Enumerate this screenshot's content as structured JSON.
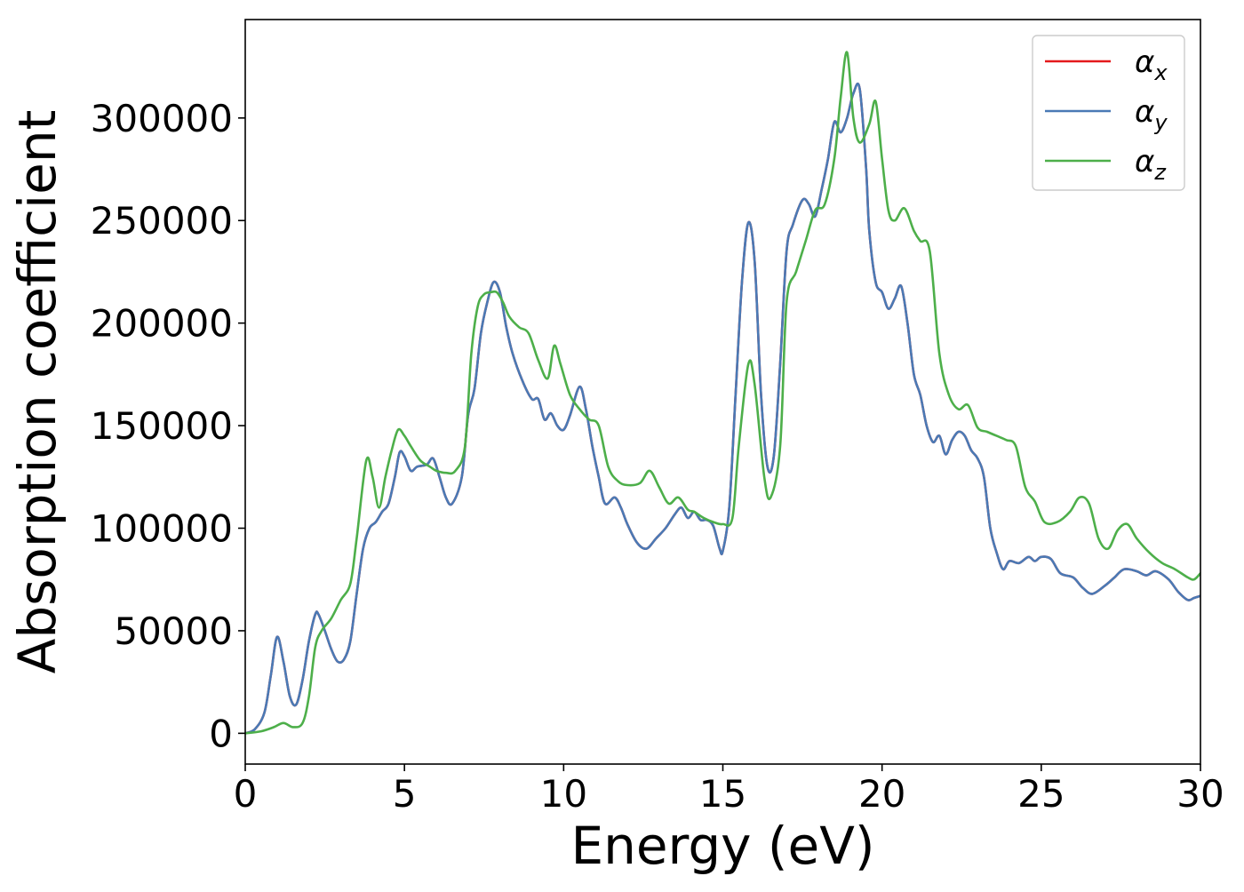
{
  "chart_data": {
    "type": "line",
    "title": "",
    "xlabel": "Energy (eV)",
    "ylabel": "Absorption coefficient",
    "xlim": [
      0,
      30
    ],
    "ylim": [
      -15000,
      348000
    ],
    "x_ticks": [
      0,
      5,
      10,
      15,
      20,
      25,
      30
    ],
    "x_tick_labels": [
      "0",
      "5",
      "10",
      "15",
      "20",
      "25",
      "30"
    ],
    "y_ticks": [
      0,
      50000,
      100000,
      150000,
      200000,
      250000,
      300000
    ],
    "y_tick_labels": [
      "0",
      "50000",
      "100000",
      "150000",
      "200000",
      "250000",
      "300000"
    ],
    "grid": false,
    "legend_position": "top-right",
    "series": [
      {
        "name": "αx",
        "legend_base": "α",
        "legend_sub": "x",
        "color": "#e41a1c",
        "x": [
          0,
          0.3,
          0.6,
          0.8,
          1.0,
          1.2,
          1.4,
          1.6,
          1.8,
          2.0,
          2.2,
          2.3,
          2.5,
          2.7,
          2.9,
          3.1,
          3.3,
          3.5,
          3.7,
          3.9,
          4.1,
          4.3,
          4.5,
          4.7,
          4.85,
          5.0,
          5.2,
          5.4,
          5.7,
          5.9,
          6.1,
          6.3,
          6.5,
          6.8,
          7.0,
          7.2,
          7.4,
          7.6,
          7.8,
          8.0,
          8.2,
          8.4,
          8.7,
          9.0,
          9.2,
          9.4,
          9.6,
          9.8,
          10.0,
          10.2,
          10.5,
          10.7,
          10.9,
          11.1,
          11.3,
          11.6,
          11.8,
          12.0,
          12.3,
          12.6,
          12.9,
          13.2,
          13.5,
          13.7,
          13.9,
          14.1,
          14.3,
          14.5,
          14.7,
          14.9,
          15.0,
          15.2,
          15.4,
          15.6,
          15.8,
          16.0,
          16.2,
          16.4,
          16.6,
          16.8,
          17.0,
          17.2,
          17.5,
          17.7,
          17.9,
          18.1,
          18.3,
          18.5,
          18.7,
          18.9,
          19.1,
          19.3,
          19.5,
          19.6,
          19.8,
          20.0,
          20.2,
          20.4,
          20.6,
          20.8,
          21.0,
          21.2,
          21.4,
          21.6,
          21.8,
          22.0,
          22.2,
          22.4,
          22.6,
          22.8,
          23.0,
          23.2,
          23.4,
          23.6,
          23.8,
          24.0,
          24.3,
          24.6,
          24.8,
          25.0,
          25.3,
          25.6,
          26.0,
          26.3,
          26.6,
          27.0,
          27.3,
          27.6,
          28.0,
          28.3,
          28.6,
          29.0,
          29.3,
          29.6,
          29.8,
          30.0
        ],
        "y": [
          0,
          2000,
          10000,
          28000,
          47000,
          35000,
          18000,
          14000,
          26000,
          45000,
          58000,
          58000,
          50000,
          41000,
          35000,
          36000,
          45000,
          68000,
          90000,
          100000,
          103000,
          108000,
          112000,
          125000,
          137000,
          135000,
          128000,
          130000,
          131000,
          134000,
          125000,
          115000,
          112000,
          125000,
          155000,
          168000,
          195000,
          210000,
          220000,
          215000,
          198000,
          185000,
          172000,
          163000,
          163000,
          153000,
          156000,
          150000,
          148000,
          155000,
          169000,
          158000,
          140000,
          125000,
          112000,
          115000,
          110000,
          102000,
          93000,
          90000,
          95000,
          100000,
          107000,
          110000,
          105000,
          108000,
          104000,
          104000,
          101000,
          90000,
          89000,
          110000,
          165000,
          220000,
          249000,
          230000,
          165000,
          130000,
          135000,
          180000,
          235000,
          248000,
          260000,
          258000,
          252000,
          265000,
          280000,
          298000,
          293000,
          300000,
          312000,
          314000,
          275000,
          245000,
          220000,
          215000,
          207000,
          212000,
          218000,
          200000,
          175000,
          165000,
          150000,
          142000,
          145000,
          136000,
          143000,
          147000,
          145000,
          138000,
          134000,
          125000,
          100000,
          88000,
          80000,
          84000,
          83000,
          86000,
          84000,
          86000,
          85000,
          78000,
          76000,
          71000,
          68000,
          72000,
          76000,
          80000,
          79000,
          77000,
          79000,
          75000,
          69000,
          65000,
          66000,
          67000
        ]
      },
      {
        "name": "αy",
        "legend_base": "α",
        "legend_sub": "y",
        "color": "#4a7ab5",
        "x": [
          0,
          0.3,
          0.6,
          0.8,
          1.0,
          1.2,
          1.4,
          1.6,
          1.8,
          2.0,
          2.2,
          2.3,
          2.5,
          2.7,
          2.9,
          3.1,
          3.3,
          3.5,
          3.7,
          3.9,
          4.1,
          4.3,
          4.5,
          4.7,
          4.85,
          5.0,
          5.2,
          5.4,
          5.7,
          5.9,
          6.1,
          6.3,
          6.5,
          6.8,
          7.0,
          7.2,
          7.4,
          7.6,
          7.8,
          8.0,
          8.2,
          8.4,
          8.7,
          9.0,
          9.2,
          9.4,
          9.6,
          9.8,
          10.0,
          10.2,
          10.5,
          10.7,
          10.9,
          11.1,
          11.3,
          11.6,
          11.8,
          12.0,
          12.3,
          12.6,
          12.9,
          13.2,
          13.5,
          13.7,
          13.9,
          14.1,
          14.3,
          14.5,
          14.7,
          14.9,
          15.0,
          15.2,
          15.4,
          15.6,
          15.8,
          16.0,
          16.2,
          16.4,
          16.6,
          16.8,
          17.0,
          17.2,
          17.5,
          17.7,
          17.9,
          18.1,
          18.3,
          18.5,
          18.7,
          18.9,
          19.1,
          19.3,
          19.5,
          19.6,
          19.8,
          20.0,
          20.2,
          20.4,
          20.6,
          20.8,
          21.0,
          21.2,
          21.4,
          21.6,
          21.8,
          22.0,
          22.2,
          22.4,
          22.6,
          22.8,
          23.0,
          23.2,
          23.4,
          23.6,
          23.8,
          24.0,
          24.3,
          24.6,
          24.8,
          25.0,
          25.3,
          25.6,
          26.0,
          26.3,
          26.6,
          27.0,
          27.3,
          27.6,
          28.0,
          28.3,
          28.6,
          29.0,
          29.3,
          29.6,
          29.8,
          30.0
        ],
        "y": [
          0,
          2000,
          10000,
          28000,
          47000,
          35000,
          18000,
          14000,
          26000,
          45000,
          58000,
          58000,
          50000,
          41000,
          35000,
          36000,
          45000,
          68000,
          90000,
          100000,
          103000,
          108000,
          112000,
          125000,
          137000,
          135000,
          128000,
          130000,
          131000,
          134000,
          125000,
          115000,
          112000,
          125000,
          155000,
          168000,
          195000,
          210000,
          220000,
          215000,
          198000,
          185000,
          172000,
          163000,
          163000,
          153000,
          156000,
          150000,
          148000,
          155000,
          169000,
          158000,
          140000,
          125000,
          112000,
          115000,
          110000,
          102000,
          93000,
          90000,
          95000,
          100000,
          107000,
          110000,
          105000,
          108000,
          104000,
          104000,
          101000,
          90000,
          89000,
          110000,
          165000,
          220000,
          249000,
          230000,
          165000,
          130000,
          135000,
          180000,
          235000,
          248000,
          260000,
          258000,
          252000,
          265000,
          280000,
          298000,
          293000,
          300000,
          312000,
          314000,
          275000,
          245000,
          220000,
          215000,
          207000,
          212000,
          218000,
          200000,
          175000,
          165000,
          150000,
          142000,
          145000,
          136000,
          143000,
          147000,
          145000,
          138000,
          134000,
          125000,
          100000,
          88000,
          80000,
          84000,
          83000,
          86000,
          84000,
          86000,
          85000,
          78000,
          76000,
          71000,
          68000,
          72000,
          76000,
          80000,
          79000,
          77000,
          79000,
          75000,
          69000,
          65000,
          66000,
          67000
        ]
      },
      {
        "name": "αz",
        "legend_base": "α",
        "legend_sub": "z",
        "color": "#4daf4a",
        "x": [
          0,
          0.5,
          0.9,
          1.2,
          1.5,
          1.8,
          2.0,
          2.2,
          2.4,
          2.7,
          3.0,
          3.3,
          3.5,
          3.8,
          4.0,
          4.2,
          4.4,
          4.6,
          4.8,
          5.0,
          5.2,
          5.5,
          5.8,
          6.0,
          6.3,
          6.6,
          6.9,
          7.1,
          7.3,
          7.5,
          7.7,
          7.9,
          8.1,
          8.3,
          8.6,
          8.9,
          9.2,
          9.5,
          9.7,
          9.9,
          10.2,
          10.5,
          10.8,
          11.1,
          11.4,
          11.7,
          12.0,
          12.4,
          12.7,
          13.0,
          13.3,
          13.6,
          13.9,
          14.1,
          14.4,
          14.7,
          15.0,
          15.3,
          15.5,
          15.8,
          16.0,
          16.3,
          16.5,
          16.8,
          17.0,
          17.3,
          17.6,
          17.9,
          18.2,
          18.5,
          18.7,
          18.9,
          19.1,
          19.3,
          19.6,
          19.8,
          20.0,
          20.2,
          20.4,
          20.7,
          21.0,
          21.2,
          21.5,
          21.8,
          22.1,
          22.4,
          22.7,
          23.0,
          23.3,
          23.6,
          23.9,
          24.2,
          24.5,
          24.8,
          25.1,
          25.5,
          25.9,
          26.2,
          26.5,
          26.8,
          27.1,
          27.4,
          27.7,
          28.0,
          28.4,
          28.8,
          29.2,
          29.6,
          29.8,
          30.0
        ],
        "y": [
          0,
          1000,
          3000,
          5000,
          3000,
          5000,
          18000,
          42000,
          50000,
          56000,
          65000,
          73000,
          95000,
          133000,
          125000,
          110000,
          125000,
          138000,
          148000,
          145000,
          140000,
          133000,
          130000,
          128000,
          127000,
          128000,
          140000,
          185000,
          208000,
          214000,
          215000,
          215000,
          210000,
          203000,
          198000,
          195000,
          182000,
          173000,
          189000,
          180000,
          165000,
          158000,
          153000,
          150000,
          130000,
          123000,
          121000,
          122000,
          128000,
          120000,
          112000,
          115000,
          109000,
          108000,
          105000,
          103000,
          102000,
          105000,
          140000,
          180000,
          170000,
          125000,
          115000,
          140000,
          210000,
          225000,
          240000,
          255000,
          258000,
          280000,
          310000,
          332000,
          300000,
          288000,
          297000,
          308000,
          280000,
          255000,
          250000,
          256000,
          245000,
          240000,
          235000,
          185000,
          165000,
          158000,
          160000,
          149000,
          147000,
          145000,
          143000,
          140000,
          120000,
          113000,
          103000,
          103000,
          108000,
          115000,
          112000,
          95000,
          90000,
          99000,
          102000,
          95000,
          88000,
          83000,
          80000,
          76000,
          75000,
          78000
        ]
      }
    ]
  }
}
